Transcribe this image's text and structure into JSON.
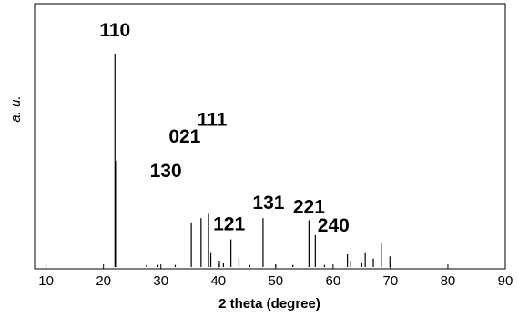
{
  "chart_data": {
    "type": "bar",
    "xlabel": "2 theta (degree)",
    "ylabel": "a. u.",
    "xlim": [
      8,
      90
    ],
    "ylim": [
      0,
      100
    ],
    "xticks": [
      10,
      20,
      30,
      40,
      50,
      60,
      70,
      80,
      90
    ],
    "grid": false,
    "color": "#000000",
    "peaks": [
      {
        "x": 22.0,
        "y": 100
      },
      {
        "x": 22.1,
        "y": 50
      },
      {
        "x": 27.5,
        "y": 1
      },
      {
        "x": 29.5,
        "y": 1
      },
      {
        "x": 32.5,
        "y": 1
      },
      {
        "x": 35.3,
        "y": 21
      },
      {
        "x": 37.0,
        "y": 23
      },
      {
        "x": 38.3,
        "y": 25
      },
      {
        "x": 38.7,
        "y": 7
      },
      {
        "x": 40.2,
        "y": 3
      },
      {
        "x": 40.9,
        "y": 2
      },
      {
        "x": 42.2,
        "y": 13
      },
      {
        "x": 43.6,
        "y": 4
      },
      {
        "x": 45.5,
        "y": 1
      },
      {
        "x": 47.8,
        "y": 23
      },
      {
        "x": 50.0,
        "y": 1
      },
      {
        "x": 53.0,
        "y": 1
      },
      {
        "x": 55.8,
        "y": 22
      },
      {
        "x": 56.9,
        "y": 15
      },
      {
        "x": 58.5,
        "y": 1
      },
      {
        "x": 62.5,
        "y": 6
      },
      {
        "x": 63.0,
        "y": 3
      },
      {
        "x": 65.0,
        "y": 2
      },
      {
        "x": 65.6,
        "y": 7
      },
      {
        "x": 67.0,
        "y": 4
      },
      {
        "x": 68.4,
        "y": 11
      },
      {
        "x": 69.9,
        "y": 5
      }
    ],
    "annotations": [
      {
        "text": "110",
        "x": 22.0,
        "y": 100
      },
      {
        "text": "130",
        "x": 35.3,
        "y": 21
      },
      {
        "text": "021",
        "x": 37.0,
        "y": 23
      },
      {
        "text": "111",
        "x": 38.3,
        "y": 25
      },
      {
        "text": "121",
        "x": 42.2,
        "y": 13
      },
      {
        "text": "131",
        "x": 47.8,
        "y": 23
      },
      {
        "text": "221",
        "x": 55.8,
        "y": 22
      },
      {
        "text": "240",
        "x": 56.9,
        "y": 15
      }
    ]
  }
}
